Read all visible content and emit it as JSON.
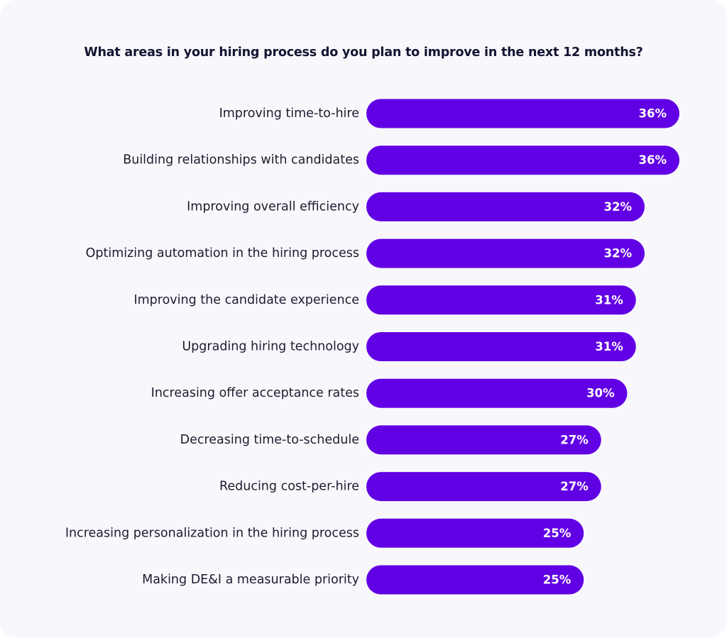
{
  "chart_data": {
    "type": "bar",
    "orientation": "horizontal",
    "title": "What areas in your hiring process do you plan to improve in the next 12 months?",
    "categories": [
      "Improving time-to-hire",
      "Building relationships with candidates",
      "Improving overall efficiency",
      "Optimizing automation in the hiring process",
      "Improving the candidate experience",
      "Upgrading hiring technology",
      "Increasing offer acceptance rates",
      "Decreasing time-to-schedule",
      "Reducing cost-per-hire",
      "Increasing personalization in the hiring process",
      "Making DE&I a measurable priority"
    ],
    "values": [
      36,
      36,
      32,
      32,
      31,
      31,
      30,
      27,
      27,
      25,
      25
    ],
    "value_labels": [
      "36%",
      "36%",
      "32%",
      "32%",
      "31%",
      "31%",
      "30%",
      "27%",
      "27%",
      "25%",
      "25%"
    ],
    "xlabel": "",
    "ylabel": "",
    "bar_color": "#6200e5",
    "grid": false,
    "legend": "none"
  }
}
